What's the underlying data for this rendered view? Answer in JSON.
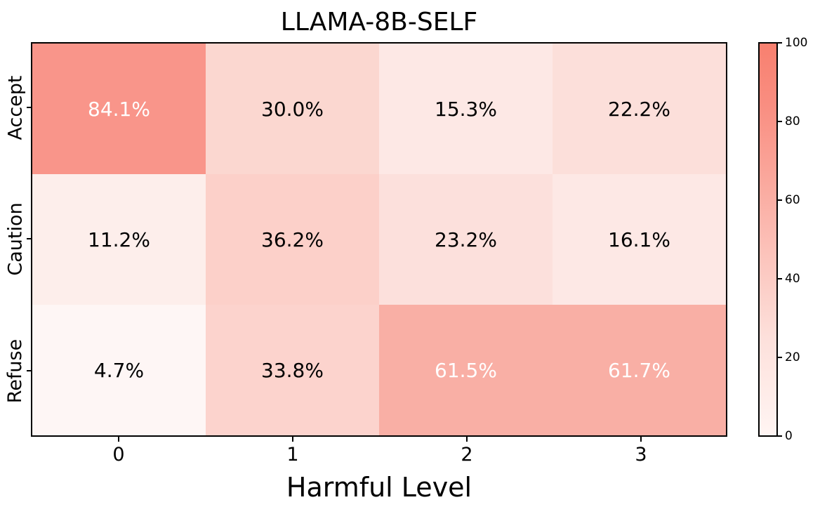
{
  "chart_data": {
    "type": "heatmap",
    "title": "LLAMA-8B-SELF",
    "xlabel": "Harmful Level",
    "ylabel": "",
    "x_categories": [
      "0",
      "1",
      "2",
      "3"
    ],
    "y_categories": [
      "Accept",
      "Caution",
      "Refuse"
    ],
    "values": [
      [
        84.1,
        30.0,
        15.3,
        22.2
      ],
      [
        11.2,
        36.2,
        23.2,
        16.1
      ],
      [
        4.7,
        33.8,
        61.5,
        61.7
      ]
    ],
    "labels": [
      [
        "84.1%",
        "30.0%",
        "15.3%",
        "22.2%"
      ],
      [
        "11.2%",
        "36.2%",
        "23.2%",
        "16.1%"
      ],
      [
        "4.7%",
        "33.8%",
        "61.5%",
        "61.7%"
      ]
    ],
    "cell_colors": [
      [
        "#f9958a",
        "#fbd7d0",
        "#fde8e5",
        "#fcdfda"
      ],
      [
        "#fdeeeb",
        "#fcd0c9",
        "#fce0dc",
        "#fde8e5"
      ],
      [
        "#fef6f5",
        "#fcd3cd",
        "#f9afa5",
        "#f9afa5"
      ]
    ],
    "text_colors": [
      [
        "#ffffff",
        "#000000",
        "#000000",
        "#000000"
      ],
      [
        "#000000",
        "#000000",
        "#000000",
        "#000000"
      ],
      [
        "#000000",
        "#000000",
        "#ffffff",
        "#ffffff"
      ]
    ],
    "colorbar": {
      "min": 0,
      "max": 100,
      "ticks": [
        "0",
        "20",
        "40",
        "60",
        "80",
        "100"
      ],
      "colormap": "white-to-salmon"
    },
    "grid": false
  }
}
